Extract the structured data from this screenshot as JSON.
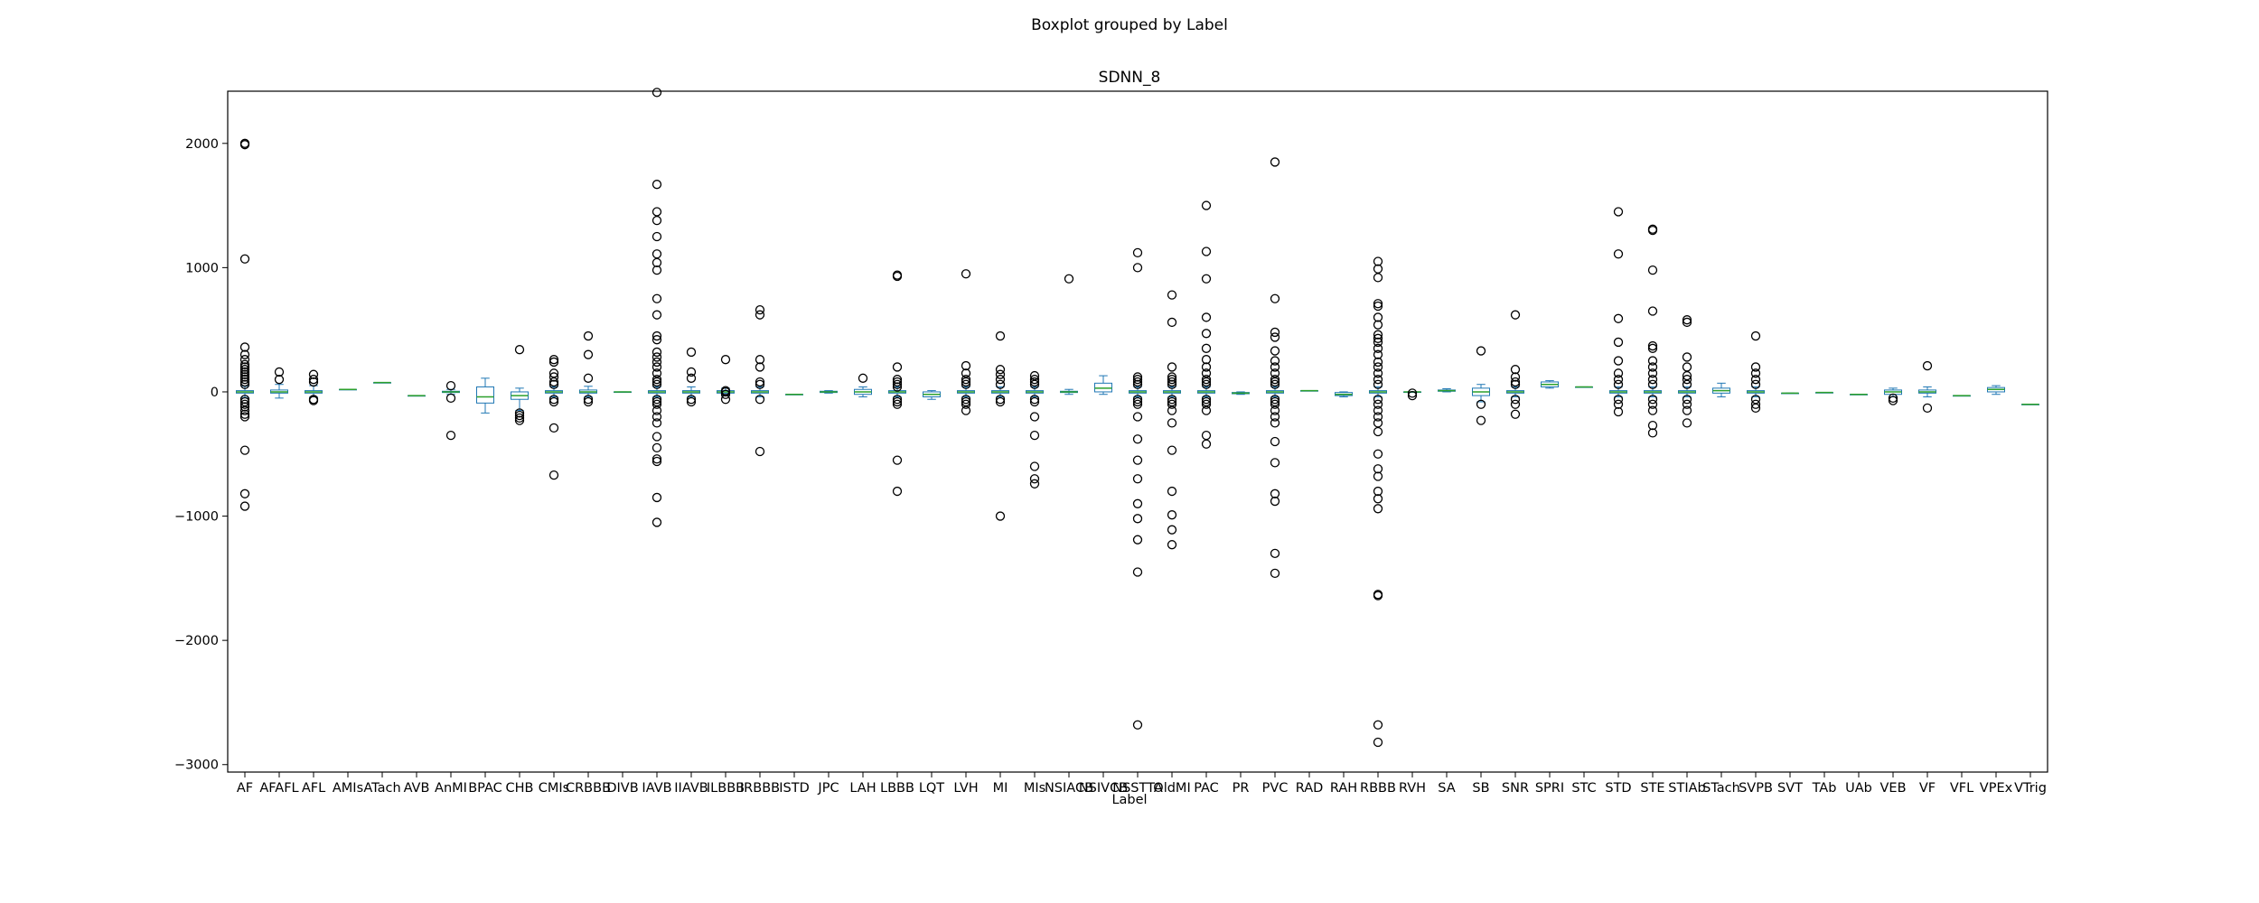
{
  "chart_data": {
    "type": "boxplot",
    "suptitle": "Boxplot grouped by Label",
    "title": "SDNN_8",
    "xlabel": "Label",
    "ylabel": "",
    "ylim": [
      -3060,
      2420
    ],
    "yticks": [
      -3000,
      -2000,
      -1000,
      0,
      1000,
      2000
    ],
    "colors": {
      "box": "#1f77b4",
      "median": "#2ca02c",
      "flier": "#000000",
      "frame": "#000000"
    },
    "categories": [
      "AF",
      "AFAFL",
      "AFL",
      "AMIs",
      "ATach",
      "AVB",
      "AnMI",
      "BPAC",
      "CHB",
      "CMIs",
      "CRBBB",
      "DIVB",
      "IAVB",
      "IIAVB",
      "ILBBB",
      "IRBBB",
      "ISTD",
      "JPC",
      "LAH",
      "LBBB",
      "LQT",
      "LVH",
      "MI",
      "MIs",
      "NSIACB",
      "NSIVCB",
      "NSSTTA",
      "OldMI",
      "PAC",
      "PR",
      "PVC",
      "RAD",
      "RAH",
      "RBBB",
      "RVH",
      "SA",
      "SB",
      "SNR",
      "SPRI",
      "STC",
      "STD",
      "STE",
      "STIAb",
      "STach",
      "SVPB",
      "SVT",
      "TAb",
      "UAb",
      "VEB",
      "VF",
      "VFL",
      "VPEx",
      "VTrig"
    ],
    "boxes": [
      {
        "label": "AF",
        "whislo": -45,
        "q1": -10,
        "med": 0,
        "q3": 10,
        "whishi": 45,
        "fliers": [
          2000,
          1990,
          1070,
          360,
          300,
          260,
          220,
          200,
          180,
          160,
          140,
          120,
          100,
          80,
          60,
          -60,
          -80,
          -100,
          -120,
          -150,
          -180,
          -200,
          -470,
          -820,
          -920
        ]
      },
      {
        "label": "AFAFL",
        "whislo": -50,
        "q1": -10,
        "med": 0,
        "q3": 15,
        "whishi": 60,
        "fliers": [
          160,
          100
        ]
      },
      {
        "label": "AFL",
        "whislo": -40,
        "q1": -10,
        "med": 0,
        "q3": 10,
        "whishi": 50,
        "fliers": [
          140,
          100,
          80,
          -60,
          -70
        ]
      },
      {
        "label": "AMIs",
        "whislo": 20,
        "q1": 20,
        "med": 20,
        "q3": 20,
        "whishi": 20,
        "fliers": []
      },
      {
        "label": "ATach",
        "whislo": 75,
        "q1": 75,
        "med": 75,
        "q3": 75,
        "whishi": 75,
        "fliers": []
      },
      {
        "label": "AVB",
        "whislo": -30,
        "q1": -30,
        "med": -30,
        "q3": -30,
        "whishi": -30,
        "fliers": []
      },
      {
        "label": "AnMI",
        "whislo": -20,
        "q1": -5,
        "med": 0,
        "q3": 5,
        "whishi": 20,
        "fliers": [
          50,
          -50,
          -350
        ]
      },
      {
        "label": "BPAC",
        "whislo": -170,
        "q1": -90,
        "med": -40,
        "q3": 40,
        "whishi": 110,
        "fliers": []
      },
      {
        "label": "CHB",
        "whislo": -150,
        "q1": -60,
        "med": -30,
        "q3": 0,
        "whishi": 30,
        "fliers": [
          340,
          -170,
          -190,
          -210,
          -230
        ]
      },
      {
        "label": "CMIs",
        "whislo": -40,
        "q1": -10,
        "med": 0,
        "q3": 10,
        "whishi": 40,
        "fliers": [
          260,
          240,
          150,
          120,
          80,
          60,
          -60,
          -80,
          -290,
          -670
        ]
      },
      {
        "label": "CRBBB",
        "whislo": -40,
        "q1": -10,
        "med": 0,
        "q3": 15,
        "whishi": 45,
        "fliers": [
          450,
          300,
          110,
          -60,
          -80
        ]
      },
      {
        "label": "DIVB",
        "whislo": 0,
        "q1": 0,
        "med": 0,
        "q3": 0,
        "whishi": 0,
        "fliers": []
      },
      {
        "label": "IAVB",
        "whislo": -40,
        "q1": -10,
        "med": 0,
        "q3": 10,
        "whishi": 40,
        "fliers": [
          2410,
          1670,
          1450,
          1380,
          1250,
          1110,
          1040,
          980,
          750,
          620,
          450,
          420,
          320,
          280,
          240,
          200,
          150,
          100,
          80,
          60,
          -60,
          -80,
          -100,
          -150,
          -200,
          -250,
          -360,
          -450,
          -540,
          -560,
          -850,
          -1050
        ]
      },
      {
        "label": "IIAVB",
        "whislo": -40,
        "q1": -10,
        "med": 0,
        "q3": 10,
        "whishi": 40,
        "fliers": [
          320,
          160,
          110,
          -60,
          -80
        ]
      },
      {
        "label": "ILBBB",
        "whislo": -30,
        "q1": -10,
        "med": 0,
        "q3": 10,
        "whishi": 30,
        "fliers": [
          260,
          10,
          0,
          -20,
          -60
        ]
      },
      {
        "label": "IRBBB",
        "whislo": -40,
        "q1": -10,
        "med": 0,
        "q3": 10,
        "whishi": 40,
        "fliers": [
          660,
          620,
          260,
          200,
          80,
          60,
          -60,
          -480
        ]
      },
      {
        "label": "ISTD",
        "whislo": -20,
        "q1": -20,
        "med": -20,
        "q3": -20,
        "whishi": -20,
        "fliers": []
      },
      {
        "label": "JPC",
        "whislo": -10,
        "q1": -5,
        "med": 0,
        "q3": 5,
        "whishi": 10,
        "fliers": []
      },
      {
        "label": "LAH",
        "whislo": -40,
        "q1": -20,
        "med": 0,
        "q3": 20,
        "whishi": 40,
        "fliers": [
          110
        ]
      },
      {
        "label": "LBBB",
        "whislo": -40,
        "q1": -10,
        "med": 0,
        "q3": 10,
        "whishi": 40,
        "fliers": [
          940,
          930,
          200,
          100,
          80,
          60,
          40,
          -60,
          -80,
          -100,
          -550,
          -800
        ]
      },
      {
        "label": "LQT",
        "whislo": -60,
        "q1": -40,
        "med": -20,
        "q3": 0,
        "whishi": 10,
        "fliers": []
      },
      {
        "label": "LVH",
        "whislo": -40,
        "q1": -10,
        "med": 0,
        "q3": 10,
        "whishi": 40,
        "fliers": [
          950,
          210,
          150,
          100,
          80,
          60,
          -60,
          -80,
          -100,
          -150
        ]
      },
      {
        "label": "MI",
        "whislo": -40,
        "q1": -10,
        "med": 0,
        "q3": 10,
        "whishi": 40,
        "fliers": [
          450,
          180,
          140,
          100,
          60,
          -60,
          -80,
          -1000
        ]
      },
      {
        "label": "MIs",
        "whislo": -40,
        "q1": -10,
        "med": 0,
        "q3": 10,
        "whishi": 40,
        "fliers": [
          130,
          100,
          80,
          60,
          -60,
          -80,
          -200,
          -350,
          -600,
          -700,
          -740
        ]
      },
      {
        "label": "NSIACB",
        "whislo": -20,
        "q1": -5,
        "med": 0,
        "q3": 5,
        "whishi": 20,
        "fliers": [
          910
        ]
      },
      {
        "label": "NSIVCB",
        "whislo": -20,
        "q1": 0,
        "med": 30,
        "q3": 70,
        "whishi": 130,
        "fliers": []
      },
      {
        "label": "NSSTTA",
        "whislo": -40,
        "q1": -10,
        "med": 0,
        "q3": 10,
        "whishi": 40,
        "fliers": [
          1120,
          1000,
          120,
          100,
          80,
          60,
          -60,
          -80,
          -100,
          -200,
          -380,
          -550,
          -700,
          -900,
          -1020,
          -1190,
          -1450,
          -2680
        ]
      },
      {
        "label": "OldMI",
        "whislo": -40,
        "q1": -10,
        "med": 0,
        "q3": 10,
        "whishi": 40,
        "fliers": [
          780,
          560,
          200,
          120,
          100,
          80,
          60,
          -60,
          -80,
          -100,
          -150,
          -250,
          -470,
          -800,
          -990,
          -1110,
          -1230
        ]
      },
      {
        "label": "PAC",
        "whislo": -40,
        "q1": -10,
        "med": 0,
        "q3": 10,
        "whishi": 40,
        "fliers": [
          1500,
          1130,
          910,
          600,
          470,
          350,
          260,
          200,
          150,
          100,
          80,
          60,
          -60,
          -80,
          -100,
          -150,
          -350,
          -420
        ]
      },
      {
        "label": "PR",
        "whislo": -20,
        "q1": -15,
        "med": -10,
        "q3": -5,
        "whishi": 0,
        "fliers": []
      },
      {
        "label": "PVC",
        "whislo": -40,
        "q1": -10,
        "med": 0,
        "q3": 10,
        "whishi": 40,
        "fliers": [
          1850,
          750,
          480,
          440,
          330,
          250,
          200,
          150,
          100,
          80,
          60,
          -60,
          -80,
          -100,
          -150,
          -200,
          -250,
          -400,
          -570,
          -820,
          -880,
          -1300,
          -1460
        ]
      },
      {
        "label": "RAD",
        "whislo": 10,
        "q1": 10,
        "med": 10,
        "q3": 10,
        "whishi": 10,
        "fliers": []
      },
      {
        "label": "RAH",
        "whislo": -40,
        "q1": -30,
        "med": -20,
        "q3": -5,
        "whishi": 0,
        "fliers": []
      },
      {
        "label": "RBBB",
        "whislo": -40,
        "q1": -10,
        "med": 0,
        "q3": 10,
        "whishi": 40,
        "fliers": [
          1050,
          990,
          920,
          710,
          690,
          600,
          540,
          460,
          430,
          400,
          350,
          300,
          240,
          200,
          150,
          100,
          60,
          -60,
          -100,
          -150,
          -200,
          -250,
          -320,
          -500,
          -620,
          -680,
          -800,
          -860,
          -940,
          -1630,
          -1640,
          -2680,
          -2820
        ]
      },
      {
        "label": "RVH",
        "whislo": 0,
        "q1": 0,
        "med": 0,
        "q3": 0,
        "whishi": 0,
        "fliers": [
          -30,
          -10
        ]
      },
      {
        "label": "SA",
        "whislo": 0,
        "q1": 5,
        "med": 10,
        "q3": 15,
        "whishi": 25,
        "fliers": []
      },
      {
        "label": "SB",
        "whislo": -80,
        "q1": -30,
        "med": 0,
        "q3": 30,
        "whishi": 60,
        "fliers": [
          330,
          -100,
          -230
        ]
      },
      {
        "label": "SNR",
        "whislo": -40,
        "q1": -10,
        "med": 0,
        "q3": 10,
        "whishi": 40,
        "fliers": [
          620,
          180,
          120,
          80,
          60,
          -60,
          -100,
          -180
        ]
      },
      {
        "label": "SPRI",
        "whislo": 30,
        "q1": 40,
        "med": 60,
        "q3": 80,
        "whishi": 90,
        "fliers": []
      },
      {
        "label": "STC",
        "whislo": 40,
        "q1": 40,
        "med": 40,
        "q3": 40,
        "whishi": 40,
        "fliers": []
      },
      {
        "label": "STD",
        "whislo": -40,
        "q1": -10,
        "med": 0,
        "q3": 10,
        "whishi": 40,
        "fliers": [
          1450,
          1110,
          590,
          400,
          250,
          150,
          100,
          60,
          -60,
          -100,
          -160
        ]
      },
      {
        "label": "STE",
        "whislo": -40,
        "q1": -10,
        "med": 0,
        "q3": 10,
        "whishi": 40,
        "fliers": [
          1310,
          1300,
          980,
          650,
          370,
          350,
          250,
          200,
          150,
          100,
          60,
          -60,
          -100,
          -150,
          -270,
          -330
        ]
      },
      {
        "label": "STIAb",
        "whislo": -40,
        "q1": -10,
        "med": 0,
        "q3": 10,
        "whishi": 40,
        "fliers": [
          580,
          560,
          280,
          200,
          130,
          100,
          60,
          -60,
          -100,
          -150,
          -250
        ]
      },
      {
        "label": "STach",
        "whislo": -40,
        "q1": -10,
        "med": 10,
        "q3": 30,
        "whishi": 70,
        "fliers": []
      },
      {
        "label": "SVPB",
        "whislo": -40,
        "q1": -10,
        "med": 0,
        "q3": 10,
        "whishi": 40,
        "fliers": [
          450,
          200,
          150,
          100,
          60,
          -60,
          -100,
          -130
        ]
      },
      {
        "label": "SVT",
        "whislo": -10,
        "q1": -10,
        "med": -10,
        "q3": -10,
        "whishi": -10,
        "fliers": []
      },
      {
        "label": "TAb",
        "whislo": -5,
        "q1": -5,
        "med": -5,
        "q3": -5,
        "whishi": -5,
        "fliers": []
      },
      {
        "label": "UAb",
        "whislo": -20,
        "q1": -20,
        "med": -20,
        "q3": -20,
        "whishi": -20,
        "fliers": []
      },
      {
        "label": "VEB",
        "whislo": -40,
        "q1": -20,
        "med": 0,
        "q3": 15,
        "whishi": 30,
        "fliers": [
          -50,
          -70
        ]
      },
      {
        "label": "VF",
        "whislo": -40,
        "q1": -10,
        "med": 0,
        "q3": 15,
        "whishi": 40,
        "fliers": [
          210,
          -130
        ]
      },
      {
        "label": "VFL",
        "whislo": -30,
        "q1": -30,
        "med": -30,
        "q3": -30,
        "whishi": -30,
        "fliers": []
      },
      {
        "label": "VPEx",
        "whislo": -20,
        "q1": 0,
        "med": 20,
        "q3": 35,
        "whishi": 50,
        "fliers": []
      },
      {
        "label": "VTrig",
        "whislo": -100,
        "q1": -100,
        "med": -100,
        "q3": -100,
        "whishi": -100,
        "fliers": []
      }
    ]
  }
}
